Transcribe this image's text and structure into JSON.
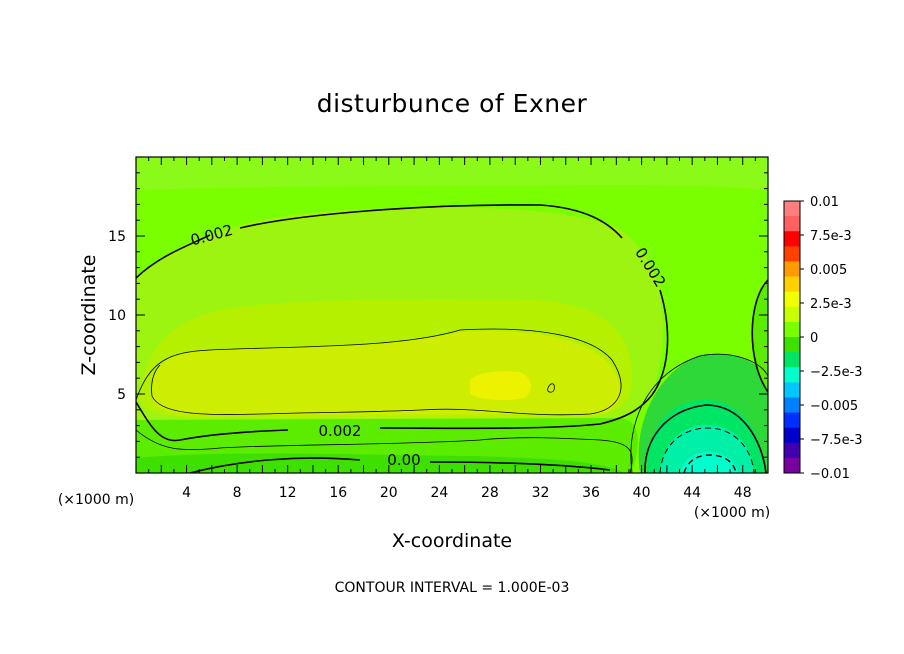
{
  "chart_data": {
    "type": "heatmap",
    "title": "disturbunce of Exner",
    "xlabel": "X-coordinate",
    "ylabel": "Z-coordinate",
    "x_unit": "(×1000 m)",
    "xlim": [
      0,
      50
    ],
    "ylim": [
      0,
      20
    ],
    "x_ticks": [
      4,
      8,
      12,
      16,
      20,
      24,
      28,
      32,
      36,
      40,
      44,
      48
    ],
    "y_ticks": [
      5,
      10,
      15
    ],
    "contour_labels": [
      "0.002",
      "0.002",
      "0.002",
      "0.00"
    ],
    "colorbar": {
      "labels": [
        "0.01",
        "7.5e-3",
        "0.005",
        "2.5e-3",
        "0",
        "−2.5e-3",
        "−0.005",
        "−7.5e-3",
        "−0.01"
      ],
      "colors": [
        "#ff7f7f",
        "#ff6060",
        "#ff0000",
        "#ff4000",
        "#ff9a00",
        "#ffd000",
        "#f2ff00",
        "#c8ff00",
        "#7aff00",
        "#3ee000",
        "#00e664",
        "#00ffcc",
        "#00c8ff",
        "#0080ff",
        "#0030ff",
        "#0000cc",
        "#4000b0",
        "#7a00a0"
      ]
    },
    "footnote": "CONTOUR INTERVAL = 1.000E-03"
  }
}
